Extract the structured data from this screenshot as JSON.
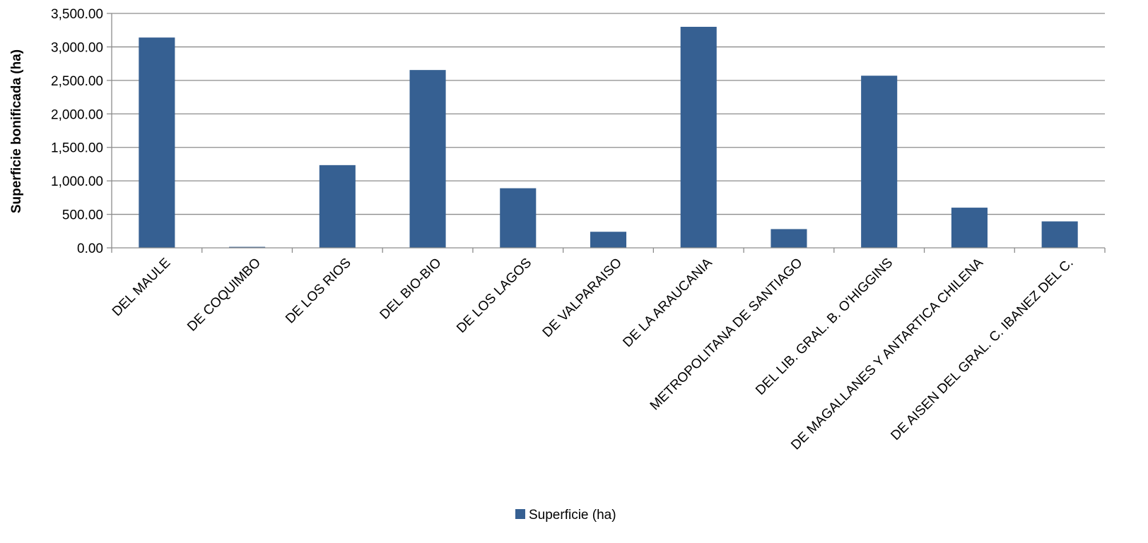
{
  "chart_data": {
    "type": "bar",
    "categories": [
      "DEL MAULE",
      "DE COQUIMBO",
      "DE LOS RIOS",
      "DEL BIO-BIO",
      "DE LOS LAGOS",
      "DE VALPARAISO",
      "DE LA ARAUCANIA",
      "METROPOLITANA DE SANTIAGO",
      "DEL LIB. GRAL. B. O'HIGGINS",
      "DE MAGALLANES Y ANTARTICA CHILENA",
      "DE AISEN DEL GRAL. C. IBANEZ DEL C."
    ],
    "series": [
      {
        "name": "Superficie (ha)",
        "color": "#366092",
        "values": [
          3140,
          15,
          1235,
          2655,
          890,
          240,
          3300,
          280,
          2570,
          600,
          395
        ]
      }
    ],
    "ylabel": "Superficie bonificada (ha)",
    "xlabel": "",
    "ylim": [
      0,
      3500
    ],
    "yticks": [
      0,
      500,
      1000,
      1500,
      2000,
      2500,
      3000,
      3500
    ],
    "ytick_labels": [
      "0.00",
      "500.00",
      "1,000.00",
      "1,500.00",
      "2,000.00",
      "2,500.00",
      "3,000.00",
      "3,500.00"
    ],
    "grid": true,
    "legend_position": "bottom"
  }
}
